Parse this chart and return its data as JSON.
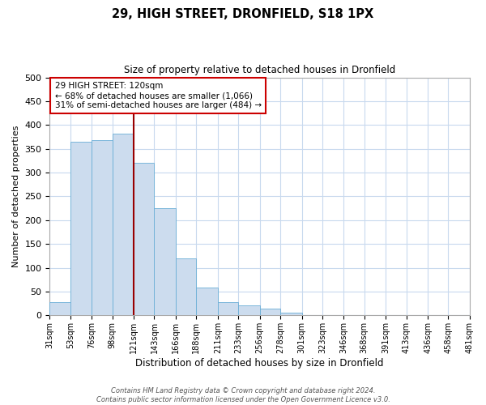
{
  "title": "29, HIGH STREET, DRONFIELD, S18 1PX",
  "subtitle": "Size of property relative to detached houses in Dronfield",
  "xlabel": "Distribution of detached houses by size in Dronfield",
  "ylabel": "Number of detached properties",
  "bin_labels": [
    "31sqm",
    "53sqm",
    "76sqm",
    "98sqm",
    "121sqm",
    "143sqm",
    "166sqm",
    "188sqm",
    "211sqm",
    "233sqm",
    "256sqm",
    "278sqm",
    "301sqm",
    "323sqm",
    "346sqm",
    "368sqm",
    "391sqm",
    "413sqm",
    "436sqm",
    "458sqm",
    "481sqm"
  ],
  "bin_edges": [
    31,
    53,
    76,
    98,
    121,
    143,
    166,
    188,
    211,
    233,
    256,
    278,
    301,
    323,
    346,
    368,
    391,
    413,
    436,
    458,
    481
  ],
  "bar_values": [
    28,
    365,
    368,
    382,
    320,
    225,
    120,
    58,
    28,
    22,
    15,
    5,
    0,
    0,
    0,
    0,
    0,
    0,
    0,
    0,
    3
  ],
  "bar_color": "#ccdcee",
  "bar_edge_color": "#6aaed6",
  "property_line_x": 121,
  "property_line_color": "#990000",
  "annotation_line1": "29 HIGH STREET: 120sqm",
  "annotation_line2": "← 68% of detached houses are smaller (1,066)",
  "annotation_line3": "31% of semi-detached houses are larger (484) →",
  "annotation_box_facecolor": "#ffffff",
  "annotation_box_edgecolor": "#cc0000",
  "ylim": [
    0,
    500
  ],
  "yticks": [
    0,
    50,
    100,
    150,
    200,
    250,
    300,
    350,
    400,
    450,
    500
  ],
  "grid_color": "#c8d9ee",
  "background_color": "#ffffff",
  "footer1": "Contains HM Land Registry data © Crown copyright and database right 2024.",
  "footer2": "Contains public sector information licensed under the Open Government Licence v3.0."
}
